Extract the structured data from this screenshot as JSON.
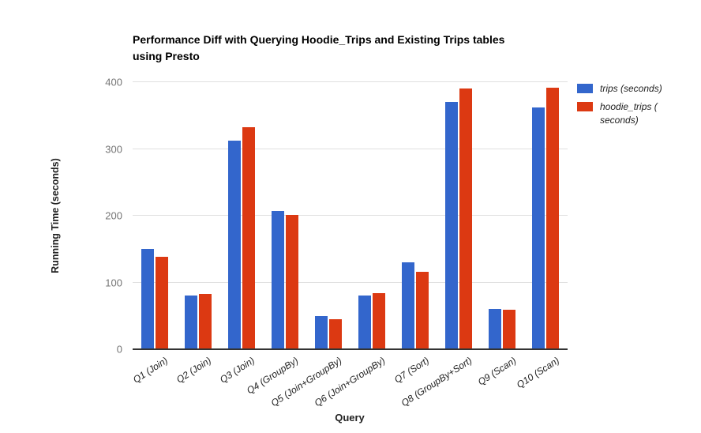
{
  "chart_data": {
    "type": "bar",
    "title": "Performance Diff with Querying Hoodie_Trips and Existing Trips tables using Presto",
    "title_lines": [
      "Performance Diff with Querying Hoodie_Trips and Existing Trips tables",
      "using Presto"
    ],
    "xlabel": "Query",
    "ylabel": "Running Time (seconds)",
    "ylim": [
      0,
      400
    ],
    "yticks": [
      0,
      100,
      200,
      300,
      400
    ],
    "grid": "horizontal",
    "legend_position": "right",
    "categories": [
      "Q1 (Join)",
      "Q2 (Join)",
      "Q3 (Join)",
      "Q4 (GroupBy)",
      "Q5 (Join+GroupBy)",
      "Q6 (Join+GroupBy)",
      "Q7 (Sort)",
      "Q8 (GroupBy+Sort)",
      "Q9 (Scan)",
      "Q10 (Scan)"
    ],
    "series": [
      {
        "name": "trips (seconds)",
        "legend_lines": [
          "trips (seconds)"
        ],
        "color": "#3366CC",
        "values": [
          150,
          80,
          313,
          207,
          50,
          80,
          130,
          370,
          60,
          362
        ]
      },
      {
        "name": "hoodie_trips (seconds)",
        "legend_lines": [
          "hoodie_trips (",
          "seconds)"
        ],
        "color": "#DC3912",
        "values": [
          138,
          83,
          332,
          201,
          45,
          84,
          116,
          390,
          59,
          392
        ]
      }
    ]
  },
  "colors": {
    "background": "#ffffff",
    "gridline": "#e0e0e0",
    "baseline": "#333333",
    "tick_label": "#757575",
    "axis_label": "#222222",
    "title": "#000000"
  }
}
